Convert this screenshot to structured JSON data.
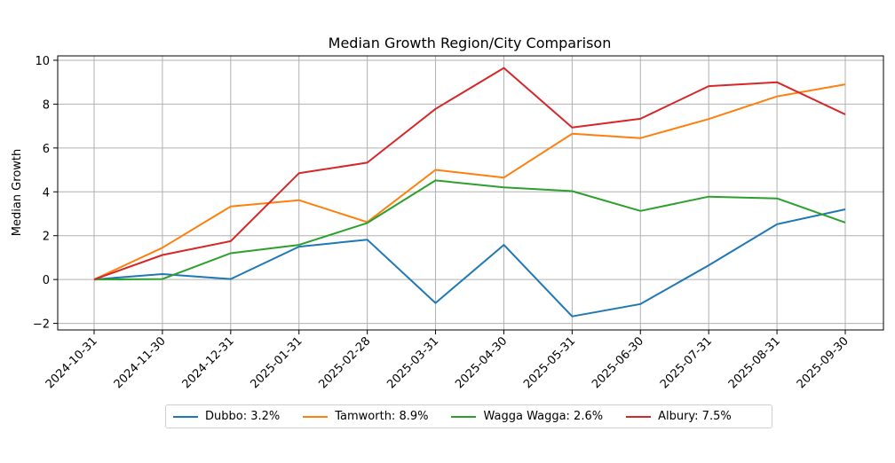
{
  "chart_data": {
    "type": "line",
    "title": "Median Growth Region/City Comparison",
    "xlabel": "",
    "ylabel": "Median Growth",
    "x": [
      "2024-10-31",
      "2024-11-30",
      "2024-12-31",
      "2025-01-31",
      "2025-02-28",
      "2025-03-31",
      "2025-04-30",
      "2025-05-31",
      "2025-06-30",
      "2025-07-31",
      "2025-08-31",
      "2025-09-30"
    ],
    "ylim": [
      -2.3,
      10.2
    ],
    "yticks": [
      -2,
      0,
      2,
      4,
      6,
      8,
      10
    ],
    "grid": true,
    "legend_position": "bottom-center",
    "series": [
      {
        "name": "Dubbo",
        "legend": "Dubbo: 3.2%",
        "color": "#1f77b4",
        "values": [
          0.0,
          0.25,
          0.02,
          1.5,
          1.82,
          -1.07,
          1.58,
          -1.68,
          -1.12,
          0.65,
          2.52,
          3.2
        ]
      },
      {
        "name": "Tamworth",
        "legend": "Tamworth: 8.9%",
        "color": "#ff7f0e",
        "values": [
          0.0,
          1.45,
          3.33,
          3.62,
          2.62,
          5.0,
          4.65,
          6.65,
          6.45,
          7.32,
          8.35,
          8.9
        ]
      },
      {
        "name": "Wagga Wagga",
        "legend": "Wagga Wagga: 2.6%",
        "color": "#2ca02c",
        "values": [
          0.0,
          0.02,
          1.2,
          1.58,
          2.58,
          4.52,
          4.2,
          4.03,
          3.13,
          3.78,
          3.7,
          2.6
        ]
      },
      {
        "name": "Albury",
        "legend": "Albury: 7.5%",
        "color": "#d62728",
        "values": [
          0.0,
          1.12,
          1.75,
          4.85,
          5.33,
          7.78,
          9.65,
          6.93,
          7.33,
          8.82,
          9.0,
          7.53
        ]
      }
    ]
  }
}
